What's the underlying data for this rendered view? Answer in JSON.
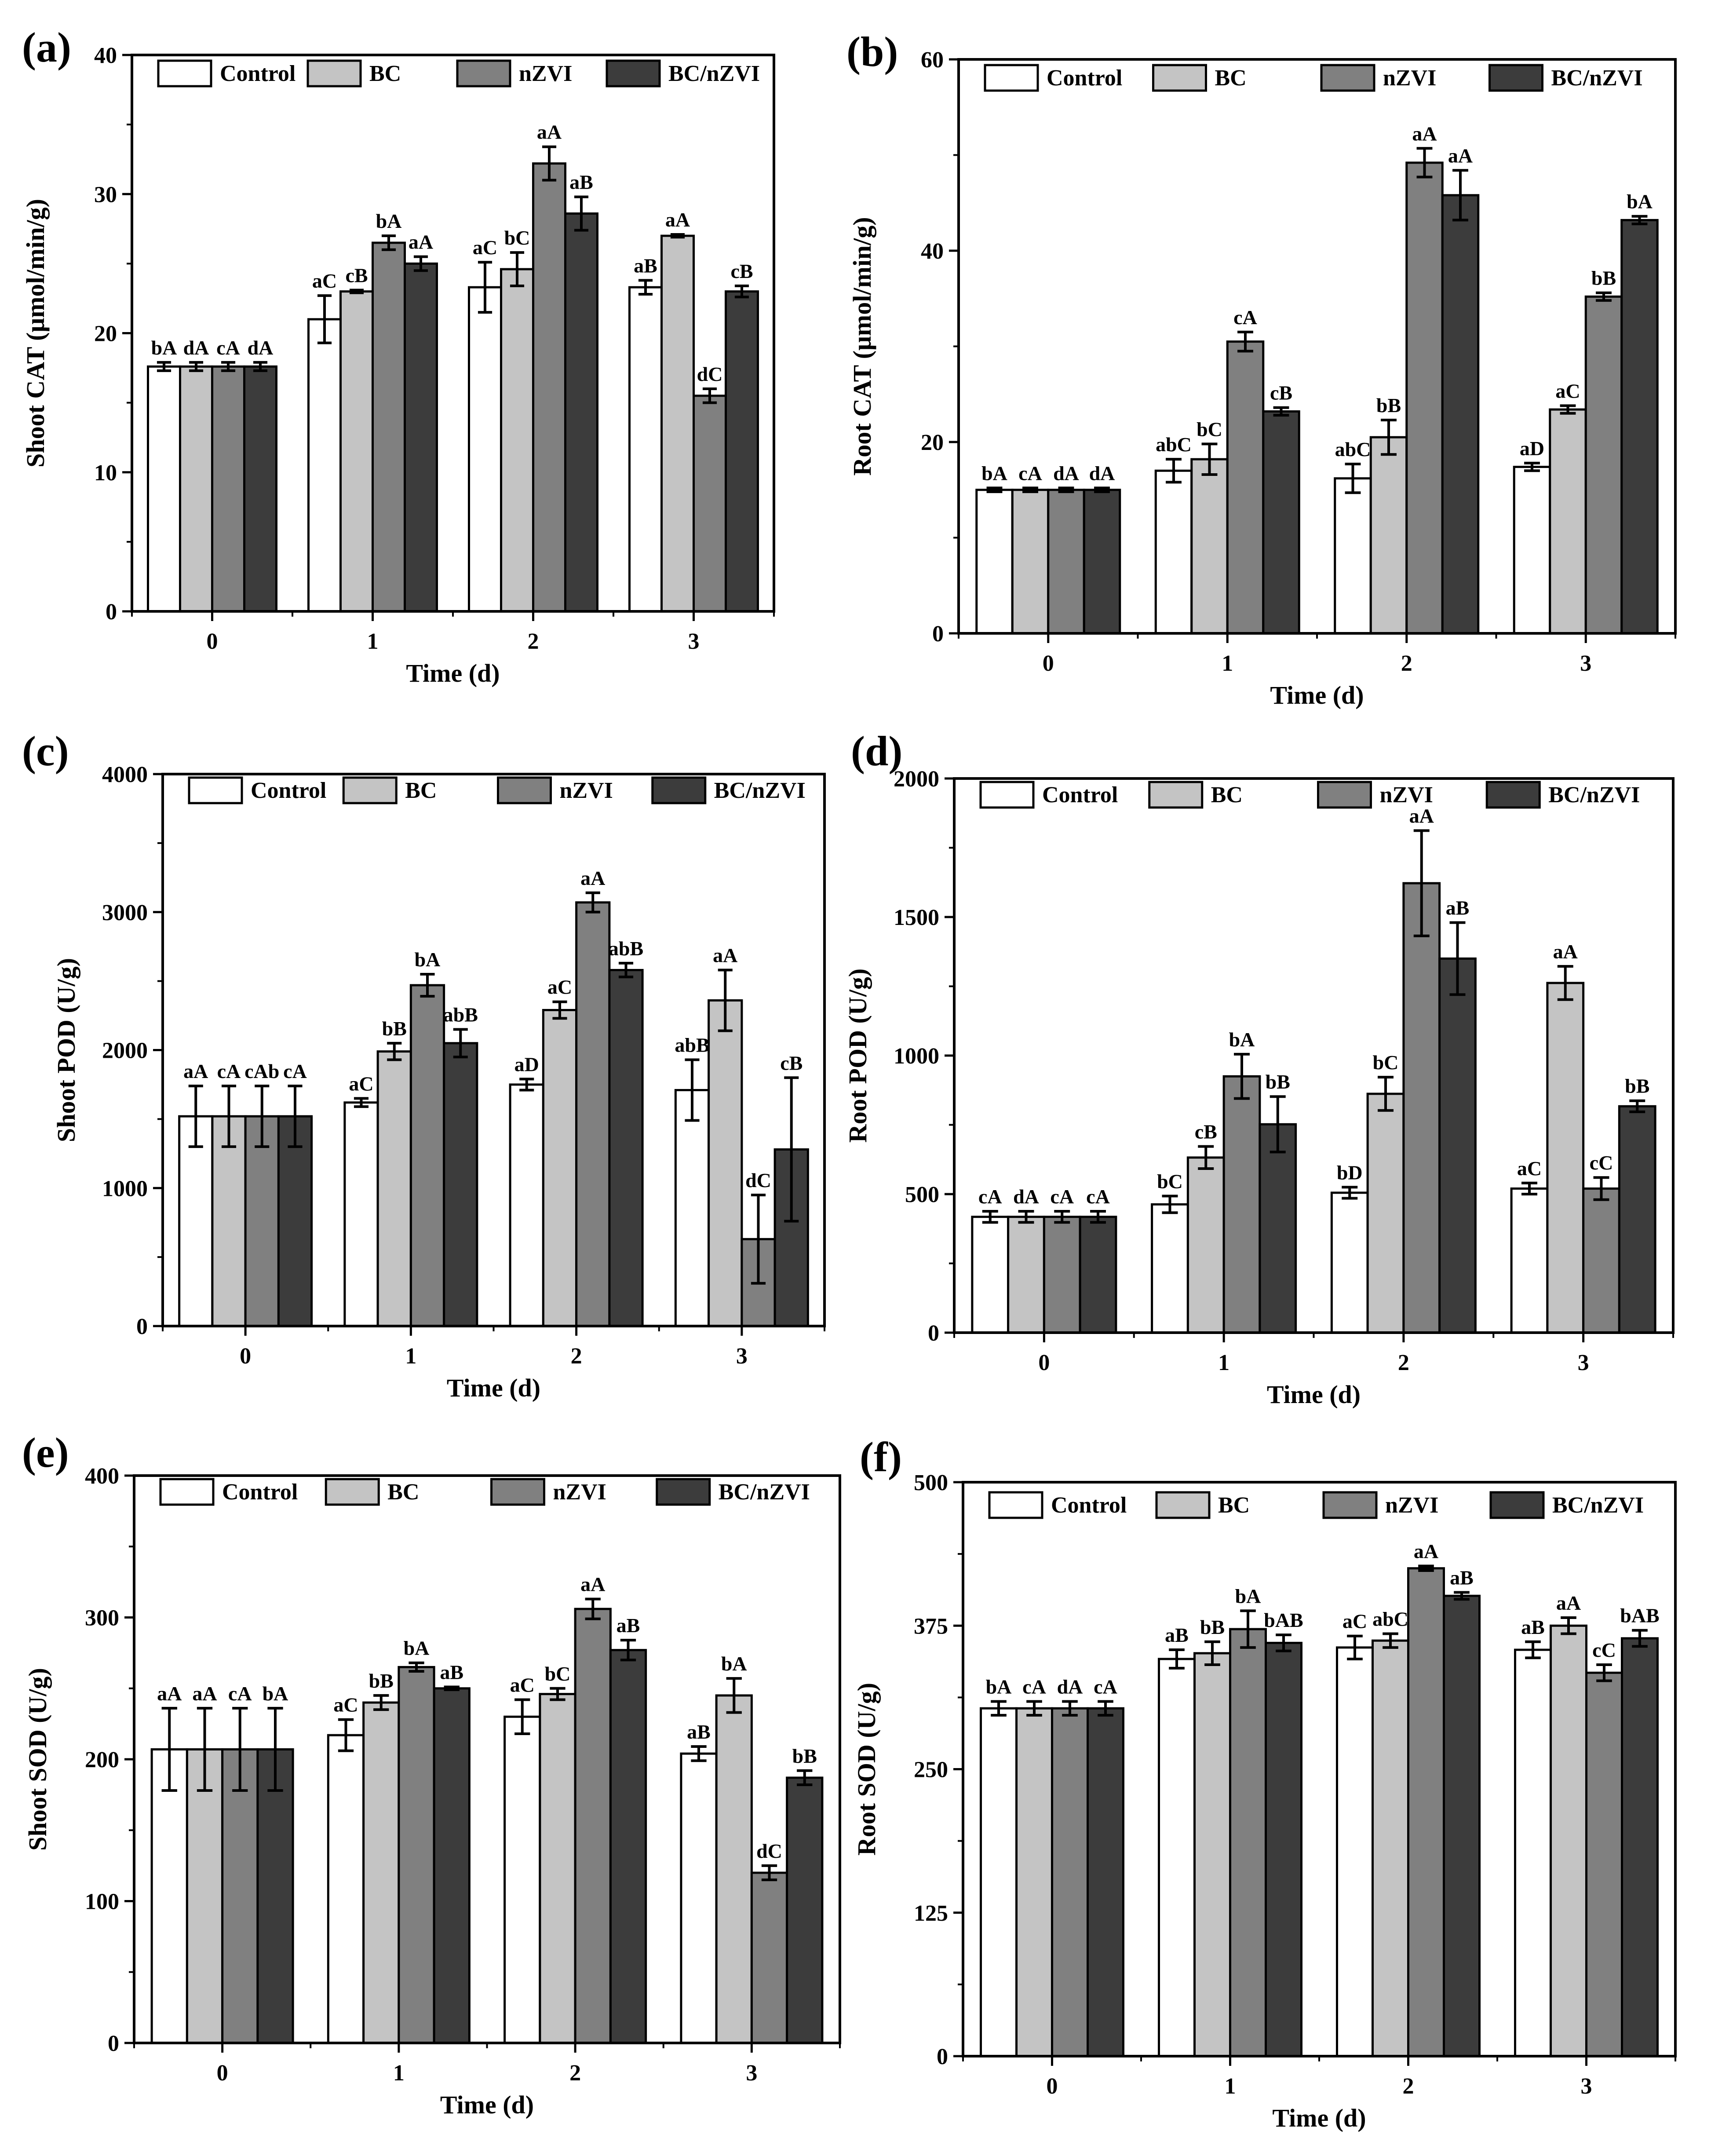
{
  "colors": {
    "Control": "#ffffff",
    "BC": "#c4c4c4",
    "nZVI": "#808080",
    "BC/nZVI": "#3c3c3c",
    "stroke": "#000000"
  },
  "chart_data": [
    {
      "panel": "(a)",
      "type": "bar",
      "title": "",
      "xlabel": "Time (d)",
      "ylabel": "Shoot CAT (μmol/min/g)",
      "categories": [
        "0",
        "1",
        "2",
        "3"
      ],
      "ylim": [
        0,
        40
      ],
      "yticks": [
        0,
        10,
        20,
        30,
        40
      ],
      "legend": [
        "Control",
        "BC",
        "nZVI",
        "BC/nZVI"
      ],
      "series": [
        {
          "name": "Control",
          "values": [
            17.6,
            21.0,
            23.3,
            23.3
          ],
          "errors": [
            0.3,
            1.7,
            1.8,
            0.5
          ],
          "labels": [
            "bA",
            "aC",
            "aC",
            "aB"
          ]
        },
        {
          "name": "BC",
          "values": [
            17.6,
            23.0,
            24.6,
            27.0
          ],
          "errors": [
            0.3,
            0.1,
            1.2,
            0.1
          ],
          "labels": [
            "dA",
            "cB",
            "bC",
            "aA"
          ]
        },
        {
          "name": "nZVI",
          "values": [
            17.6,
            26.5,
            32.2,
            15.5
          ],
          "errors": [
            0.3,
            0.5,
            1.2,
            0.5
          ],
          "labels": [
            "cA",
            "bA",
            "aA",
            "dC"
          ]
        },
        {
          "name": "BC/nZVI",
          "values": [
            17.6,
            25.0,
            28.6,
            23.0
          ],
          "errors": [
            0.3,
            0.5,
            1.2,
            0.4
          ],
          "labels": [
            "dA",
            "aA",
            "aB",
            "cB"
          ]
        }
      ]
    },
    {
      "panel": "(b)",
      "type": "bar",
      "title": "",
      "xlabel": "Time (d)",
      "ylabel": "Root CAT (μmol/min/g)",
      "categories": [
        "0",
        "1",
        "2",
        "3"
      ],
      "ylim": [
        0,
        60
      ],
      "yticks": [
        0,
        20,
        40,
        60
      ],
      "legend": [
        "Control",
        "BC",
        "nZVI",
        "BC/nZVI"
      ],
      "series": [
        {
          "name": "Control",
          "values": [
            15.0,
            17.0,
            16.2,
            17.4
          ],
          "errors": [
            0.2,
            1.2,
            1.5,
            0.4
          ],
          "labels": [
            "bA",
            "abC",
            "abC",
            "aD"
          ]
        },
        {
          "name": "BC",
          "values": [
            15.0,
            18.2,
            20.5,
            23.4
          ],
          "errors": [
            0.2,
            1.6,
            1.8,
            0.4
          ],
          "labels": [
            "cA",
            "bC",
            "bB",
            "aC"
          ]
        },
        {
          "name": "nZVI",
          "values": [
            15.0,
            30.5,
            49.2,
            35.2
          ],
          "errors": [
            0.2,
            1.0,
            1.5,
            0.4
          ],
          "labels": [
            "dA",
            "cA",
            "aA",
            "bB"
          ]
        },
        {
          "name": "BC/nZVI",
          "values": [
            15.0,
            23.2,
            45.8,
            43.2
          ],
          "errors": [
            0.2,
            0.4,
            2.6,
            0.4
          ],
          "labels": [
            "dA",
            "cB",
            "aA",
            "bA"
          ]
        }
      ]
    },
    {
      "panel": "(c)",
      "type": "bar",
      "title": "",
      "xlabel": "Time (d)",
      "ylabel": "Shoot POD (U/g)",
      "categories": [
        "0",
        "1",
        "2",
        "3"
      ],
      "ylim": [
        0,
        4000
      ],
      "yticks": [
        0,
        1000,
        2000,
        3000,
        4000
      ],
      "legend": [
        "Control",
        "BC",
        "nZVI",
        "BC/nZVI"
      ],
      "series": [
        {
          "name": "Control",
          "values": [
            1520,
            1620,
            1750,
            1710
          ],
          "errors": [
            220,
            30,
            40,
            220
          ],
          "labels": [
            "aA",
            "aC",
            "aD",
            "abB"
          ]
        },
        {
          "name": "BC",
          "values": [
            1520,
            1990,
            2290,
            2360
          ],
          "errors": [
            220,
            60,
            60,
            220
          ],
          "labels": [
            "cA",
            "bB",
            "aC",
            "aA"
          ]
        },
        {
          "name": "nZVI",
          "values": [
            1520,
            2470,
            3070,
            630
          ],
          "errors": [
            220,
            80,
            70,
            320
          ],
          "labels": [
            "cAb",
            "bA",
            "aA",
            "dC"
          ]
        },
        {
          "name": "BC/nZVI",
          "values": [
            1520,
            2050,
            2580,
            1280
          ],
          "errors": [
            220,
            100,
            50,
            520
          ],
          "labels": [
            "cA",
            "abB",
            "abB",
            "cB"
          ]
        }
      ]
    },
    {
      "panel": "(d)",
      "type": "bar",
      "title": "",
      "xlabel": "Time (d)",
      "ylabel": "Root POD (U/g)",
      "categories": [
        "0",
        "1",
        "2",
        "3"
      ],
      "ylim": [
        0,
        2000
      ],
      "yticks": [
        0,
        500,
        1000,
        1500,
        2000
      ],
      "legend": [
        "Control",
        "BC",
        "nZVI",
        "BC/nZVI"
      ],
      "series": [
        {
          "name": "Control",
          "values": [
            418,
            463,
            505,
            520
          ],
          "errors": [
            20,
            30,
            20,
            20
          ],
          "labels": [
            "cA",
            "bC",
            "bD",
            "aC"
          ]
        },
        {
          "name": "BC",
          "values": [
            418,
            632,
            862,
            1262
          ],
          "errors": [
            20,
            40,
            60,
            60
          ],
          "labels": [
            "dA",
            "cB",
            "bC",
            "aA"
          ]
        },
        {
          "name": "nZVI",
          "values": [
            418,
            925,
            1622,
            520
          ],
          "errors": [
            20,
            80,
            190,
            40
          ],
          "labels": [
            "cA",
            "bA",
            "aA",
            "cC"
          ]
        },
        {
          "name": "BC/nZVI",
          "values": [
            418,
            752,
            1350,
            817
          ],
          "errors": [
            20,
            100,
            130,
            20
          ],
          "labels": [
            "cA",
            "bB",
            "aB",
            "bB"
          ]
        }
      ]
    },
    {
      "panel": "(e)",
      "type": "bar",
      "title": "",
      "xlabel": "Time (d)",
      "ylabel": "Shoot SOD (U/g)",
      "categories": [
        "0",
        "1",
        "2",
        "3"
      ],
      "ylim": [
        0,
        400
      ],
      "yticks": [
        0,
        100,
        200,
        300,
        400
      ],
      "legend": [
        "Control",
        "BC",
        "nZVI",
        "BC/nZVI"
      ],
      "series": [
        {
          "name": "Control",
          "values": [
            207,
            217,
            230,
            204
          ],
          "errors": [
            29,
            11,
            12,
            5
          ],
          "labels": [
            "aA",
            "aC",
            "aC",
            "aB"
          ]
        },
        {
          "name": "BC",
          "values": [
            207,
            240,
            246,
            245
          ],
          "errors": [
            29,
            5,
            4,
            12
          ],
          "labels": [
            "aA",
            "bB",
            "bC",
            "bA"
          ]
        },
        {
          "name": "nZVI",
          "values": [
            207,
            265,
            306,
            120
          ],
          "errors": [
            29,
            3,
            7,
            5
          ],
          "labels": [
            "cA",
            "bA",
            "aA",
            "dC"
          ]
        },
        {
          "name": "BC/nZVI",
          "values": [
            207,
            250,
            277,
            187
          ],
          "errors": [
            29,
            1,
            7,
            5
          ],
          "labels": [
            "bA",
            "aB",
            "aB",
            "bB"
          ]
        }
      ]
    },
    {
      "panel": "(f)",
      "type": "bar",
      "title": "",
      "xlabel": "Time (d)",
      "ylabel": "Root SOD (U/g)",
      "categories": [
        "0",
        "1",
        "2",
        "3"
      ],
      "ylim": [
        0,
        500
      ],
      "yticks": [
        0,
        125,
        250,
        375,
        500
      ],
      "legend": [
        "Control",
        "BC",
        "nZVI",
        "BC/nZVI"
      ],
      "series": [
        {
          "name": "Control",
          "values": [
            303,
            346,
            356,
            354
          ],
          "errors": [
            6,
            8,
            10,
            7
          ],
          "labels": [
            "bA",
            "aB",
            "aC",
            "aB"
          ]
        },
        {
          "name": "BC",
          "values": [
            303,
            351,
            362,
            375
          ],
          "errors": [
            6,
            10,
            6,
            7
          ],
          "labels": [
            "cA",
            "bB",
            "abC",
            "aA"
          ]
        },
        {
          "name": "nZVI",
          "values": [
            303,
            372,
            425,
            334
          ],
          "errors": [
            6,
            16,
            2,
            7
          ],
          "labels": [
            "dA",
            "bA",
            "aA",
            "cC"
          ]
        },
        {
          "name": "BC/nZVI",
          "values": [
            303,
            360,
            401,
            364
          ],
          "errors": [
            6,
            7,
            3,
            7
          ],
          "labels": [
            "cA",
            "bAB",
            "aB",
            "bAB"
          ]
        }
      ]
    }
  ]
}
